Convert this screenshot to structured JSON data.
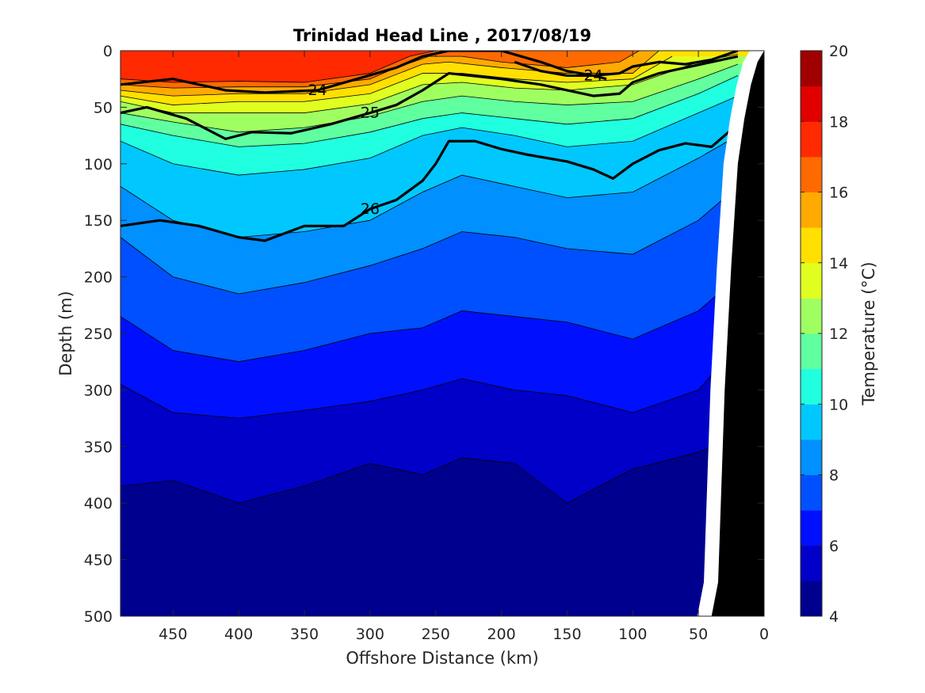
{
  "chart_data": {
    "type": "contour",
    "title": "Trinidad Head Line , 2017/08/19",
    "xlabel": "Offshore Distance (km)",
    "ylabel": "Depth (m)",
    "xlim": [
      490,
      0
    ],
    "ylim": [
      0,
      500
    ],
    "x_reversed": true,
    "y_reversed": true,
    "x_ticks": [
      "450",
      "400",
      "350",
      "300",
      "250",
      "200",
      "150",
      "100",
      "50",
      "0"
    ],
    "x_tick_values": [
      450,
      400,
      350,
      300,
      250,
      200,
      150,
      100,
      50,
      0
    ],
    "y_ticks": [
      "0",
      "50",
      "100",
      "150",
      "200",
      "250",
      "300",
      "350",
      "400",
      "450",
      "500"
    ],
    "y_tick_values": [
      0,
      50,
      100,
      150,
      200,
      250,
      300,
      350,
      400,
      450,
      500
    ],
    "colorbar": {
      "label": "Temperature (°C)",
      "range": [
        4,
        20
      ],
      "ticks": [
        "4",
        "6",
        "8",
        "10",
        "12",
        "14",
        "16",
        "18",
        "20"
      ],
      "tick_values": [
        4,
        6,
        8,
        10,
        12,
        14,
        16,
        18,
        20
      ],
      "colors": [
        "#00008f",
        "#0000c8",
        "#0010ff",
        "#0050ff",
        "#0090ff",
        "#00c8ff",
        "#20ffe0",
        "#60ff9f",
        "#a0ff60",
        "#e0ff20",
        "#ffe000",
        "#ffaa00",
        "#ff6a00",
        "#ff2a00",
        "#e00000",
        "#a00000"
      ]
    },
    "temperature_isotherms": [
      {
        "temp": 17,
        "x": [
          490,
          450,
          400,
          350,
          300,
          270,
          250,
          200,
          150,
          120,
          100
        ],
        "depth": [
          25,
          28,
          27,
          28,
          20,
          5,
          0,
          0,
          0,
          0,
          0
        ]
      },
      {
        "temp": 16,
        "x": [
          490,
          450,
          400,
          350,
          300,
          280,
          255,
          230,
          200,
          150,
          110,
          95
        ],
        "depth": [
          30,
          33,
          32,
          32,
          25,
          15,
          5,
          5,
          10,
          15,
          10,
          0
        ]
      },
      {
        "temp": 15,
        "x": [
          490,
          450,
          400,
          350,
          300,
          260,
          240,
          200,
          150,
          100,
          80
        ],
        "depth": [
          35,
          40,
          38,
          38,
          30,
          12,
          10,
          15,
          20,
          20,
          0
        ]
      },
      {
        "temp": 14,
        "x": [
          490,
          450,
          400,
          350,
          300,
          260,
          230,
          190,
          150,
          100,
          70
        ],
        "depth": [
          40,
          48,
          45,
          45,
          38,
          20,
          20,
          25,
          28,
          25,
          5
        ]
      },
      {
        "temp": 13,
        "x": [
          490,
          450,
          400,
          350,
          300,
          260,
          230,
          190,
          150,
          100,
          50,
          20
        ],
        "depth": [
          45,
          55,
          55,
          55,
          47,
          30,
          28,
          33,
          35,
          30,
          10,
          3
        ]
      },
      {
        "temp": 12,
        "x": [
          490,
          450,
          400,
          350,
          300,
          260,
          230,
          190,
          150,
          100,
          50,
          20
        ],
        "depth": [
          55,
          63,
          72,
          68,
          58,
          45,
          40,
          45,
          48,
          45,
          25,
          12
        ]
      },
      {
        "temp": 11,
        "x": [
          490,
          450,
          400,
          350,
          300,
          260,
          230,
          190,
          150,
          100,
          50,
          20
        ],
        "depth": [
          65,
          75,
          85,
          82,
          72,
          60,
          55,
          60,
          65,
          60,
          38,
          22
        ]
      },
      {
        "temp": 10,
        "x": [
          490,
          450,
          400,
          350,
          300,
          260,
          230,
          190,
          150,
          100,
          50,
          20
        ],
        "depth": [
          80,
          100,
          110,
          105,
          95,
          75,
          68,
          75,
          85,
          80,
          55,
          40
        ]
      },
      {
        "temp": 9,
        "x": [
          490,
          450,
          400,
          350,
          300,
          260,
          230,
          190,
          150,
          100,
          50,
          20
        ],
        "depth": [
          120,
          150,
          165,
          160,
          150,
          125,
          110,
          120,
          130,
          125,
          95,
          75
        ]
      },
      {
        "temp": 8,
        "x": [
          490,
          450,
          400,
          350,
          300,
          260,
          230,
          190,
          150,
          100,
          50,
          20
        ],
        "depth": [
          165,
          200,
          215,
          205,
          190,
          175,
          160,
          165,
          175,
          180,
          150,
          120
        ]
      },
      {
        "temp": 7,
        "x": [
          490,
          450,
          400,
          350,
          300,
          260,
          230,
          190,
          150,
          100,
          50,
          20
        ],
        "depth": [
          235,
          265,
          275,
          265,
          250,
          245,
          230,
          235,
          240,
          255,
          230,
          200
        ]
      },
      {
        "temp": 6,
        "x": [
          490,
          450,
          400,
          350,
          300,
          260,
          230,
          190,
          150,
          100,
          50,
          20
        ],
        "depth": [
          295,
          320,
          325,
          318,
          310,
          300,
          290,
          300,
          305,
          320,
          300,
          260
        ]
      },
      {
        "temp": 5,
        "x": [
          490,
          450,
          400,
          350,
          300,
          260,
          230,
          190,
          150,
          100,
          50,
          20
        ],
        "depth": [
          385,
          380,
          400,
          385,
          365,
          375,
          360,
          365,
          400,
          370,
          355,
          340
        ]
      }
    ],
    "density_contours": [
      {
        "label": "24",
        "x": [
          490,
          450,
          410,
          380,
          340,
          310,
          280,
          260,
          240,
          200,
          170,
          150,
          130,
          120
        ],
        "depth": [
          30,
          25,
          35,
          37,
          35,
          25,
          15,
          5,
          0,
          0,
          10,
          18,
          22,
          25
        ]
      },
      {
        "label": "24",
        "x": [
          190,
          170,
          150,
          130,
          110,
          100,
          80,
          60,
          40,
          20
        ],
        "depth": [
          10,
          18,
          22,
          22,
          20,
          14,
          10,
          12,
          8,
          0
        ]
      },
      {
        "label": "25",
        "x": [
          490,
          470,
          440,
          410,
          390,
          360,
          330,
          300,
          280,
          260,
          240,
          200,
          170,
          150,
          130,
          110,
          100,
          80,
          60,
          40,
          20
        ],
        "depth": [
          55,
          50,
          60,
          78,
          72,
          73,
          65,
          55,
          48,
          35,
          20,
          25,
          30,
          35,
          40,
          38,
          28,
          20,
          15,
          10,
          5
        ]
      },
      {
        "label": "26",
        "x": [
          490,
          460,
          430,
          400,
          380,
          350,
          320,
          300,
          280,
          260,
          250,
          240,
          220,
          200,
          180,
          150,
          130,
          115,
          100,
          80,
          60,
          40,
          20
        ],
        "depth": [
          155,
          150,
          155,
          165,
          168,
          155,
          155,
          140,
          132,
          115,
          100,
          80,
          80,
          87,
          92,
          98,
          105,
          113,
          100,
          88,
          82,
          85,
          65
        ]
      }
    ],
    "bottom_profile": {
      "x": [
        40,
        35,
        30,
        25,
        20,
        15,
        10,
        5,
        0
      ],
      "depth": [
        500,
        470,
        300,
        190,
        100,
        60,
        30,
        10,
        0
      ]
    }
  }
}
